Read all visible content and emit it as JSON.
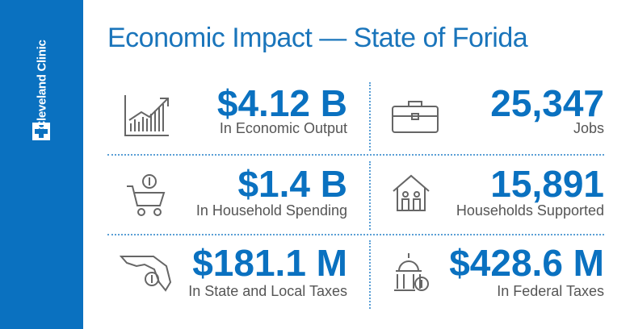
{
  "header": {
    "brand": "Cleveland Clinic",
    "title": "Economic Impact — State of Forida"
  },
  "stats": [
    {
      "value": "$4.12 B",
      "label": "In Economic Output"
    },
    {
      "value": "25,347",
      "label": "Jobs"
    },
    {
      "value": "$1.4 B",
      "label": "In Household Spending"
    },
    {
      "value": "15,891",
      "label": "Households Supported"
    },
    {
      "value": "$181.1 M",
      "label": "In State and Local Taxes"
    },
    {
      "value": "$428.6 M",
      "label": "In Federal Taxes"
    }
  ]
}
